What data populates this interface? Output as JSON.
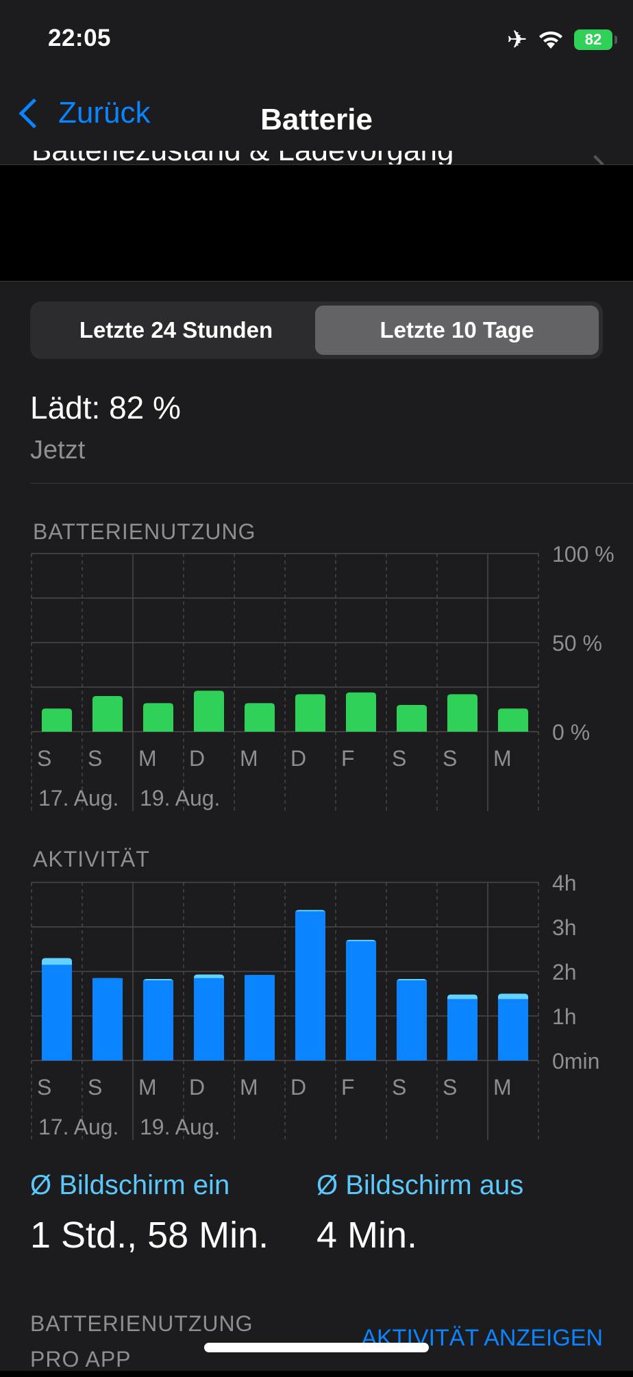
{
  "status_bar": {
    "time": "22:05",
    "battery": "82"
  },
  "nav": {
    "back_label": "Zurück",
    "title": "Batterie",
    "row_label": "Batteriezustand & Ladevorgang"
  },
  "segmented": {
    "left": "Letzte 24 Stunden",
    "right": "Letzte 10 Tage",
    "selected": "right"
  },
  "charging": {
    "status": "Lädt: 82 %",
    "time": "Jetzt"
  },
  "battery_chart": {
    "title": "BATTERIENUTZUNG",
    "y_labels": [
      "100 %",
      "50 %",
      "0 %"
    ],
    "day_labels": [
      "S",
      "S",
      "M",
      "D",
      "M",
      "D",
      "F",
      "S",
      "S",
      "M"
    ],
    "date_labels": [
      "17. Aug.",
      "19. Aug."
    ]
  },
  "activity_chart": {
    "title": "AKTIVITÄT",
    "y_labels": [
      "4h",
      "3h",
      "2h",
      "1h",
      "0min"
    ],
    "day_labels": [
      "S",
      "S",
      "M",
      "D",
      "M",
      "D",
      "F",
      "S",
      "S",
      "M"
    ],
    "date_labels": [
      "17. Aug.",
      "19. Aug."
    ]
  },
  "stats": {
    "on_label": "Ø Bildschirm ein",
    "on_value": "1 Std., 58 Min.",
    "off_label": "Ø Bildschirm aus",
    "off_value": "4 Min."
  },
  "usage_section": {
    "title_line1": "BATTERIENUTZUNG",
    "title_line2": "PRO APP",
    "link": "AKTIVITÄT ANZEIGEN"
  },
  "colors": {
    "accent": "#0a84ff",
    "battery_bar": "#30d158",
    "screen_on": "#0a84ff",
    "screen_off": "#64d2ff"
  },
  "chart_data": [
    {
      "type": "bar",
      "title": "BATTERIENUTZUNG",
      "categories": [
        "S",
        "S",
        "M",
        "D",
        "M",
        "D",
        "F",
        "S",
        "S",
        "M"
      ],
      "values": [
        13,
        20,
        16,
        23,
        16,
        21,
        22,
        15,
        21,
        13
      ],
      "ylim": [
        0,
        100
      ],
      "y_unit": "%"
    },
    {
      "type": "bar",
      "title": "AKTIVITÄT",
      "categories": [
        "S",
        "S",
        "M",
        "D",
        "M",
        "D",
        "F",
        "S",
        "S",
        "M"
      ],
      "series": [
        {
          "name": "Bildschirm ein",
          "values": [
            2.15,
            1.85,
            1.8,
            1.85,
            1.92,
            3.35,
            2.68,
            1.8,
            1.38,
            1.38
          ]
        },
        {
          "name": "Bildschirm aus",
          "values": [
            0.15,
            0.0,
            0.03,
            0.08,
            0.0,
            0.03,
            0.03,
            0.03,
            0.1,
            0.12
          ]
        }
      ],
      "ylim": [
        0,
        4
      ],
      "y_unit": "h"
    }
  ]
}
